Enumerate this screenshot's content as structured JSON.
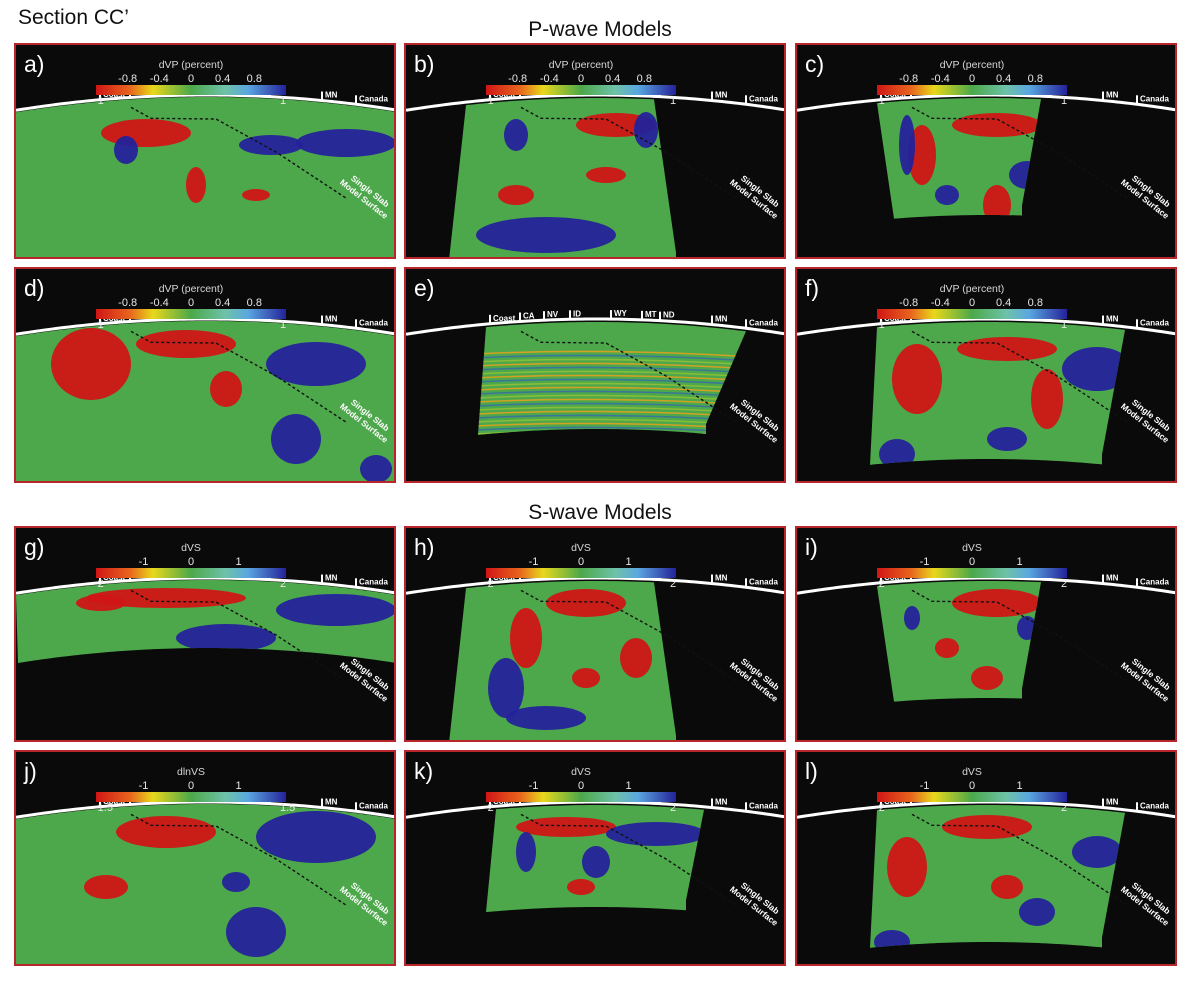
{
  "figure_title": "Section CC’",
  "groups": {
    "p": "P-wave Models",
    "s": "S-wave Models"
  },
  "state_labels": [
    "Coast",
    "CA",
    "NV",
    "ID",
    "WY",
    "MT",
    "ND",
    "MN",
    "Canada"
  ],
  "slab_label": [
    "Single Slab",
    "Model Surface"
  ],
  "colors": {
    "red": "#d01515",
    "green": "#4ca84a",
    "blue": "#24229a",
    "frame": "#b8262b",
    "bg": "#0a0a0a"
  },
  "panels": [
    {
      "id": "a",
      "label": "a)",
      "cbar_title": "dVP (percent)",
      "ticks": [
        "-0.8",
        "-0.4",
        "0",
        "0.4",
        "0.8"
      ],
      "min": "-1",
      "max": "1"
    },
    {
      "id": "b",
      "label": "b)",
      "cbar_title": "dVP (percent)",
      "ticks": [
        "-0.8",
        "-0.4",
        "0",
        "0.4",
        "0.8"
      ],
      "min": "-1",
      "max": "1"
    },
    {
      "id": "c",
      "label": "c)",
      "cbar_title": "dVP (percent)",
      "ticks": [
        "-0.8",
        "-0.4",
        "0",
        "0.4",
        "0.8"
      ],
      "min": "-1",
      "max": "1"
    },
    {
      "id": "d",
      "label": "d)",
      "cbar_title": "dVP (percent)",
      "ticks": [
        "-0.8",
        "-0.4",
        "0",
        "0.4",
        "0.8"
      ],
      "min": "-1",
      "max": "1"
    },
    {
      "id": "e",
      "label": "e)",
      "cbar_title": "",
      "ticks": [],
      "min": "",
      "max": ""
    },
    {
      "id": "f",
      "label": "f)",
      "cbar_title": "dVP (percent)",
      "ticks": [
        "-0.8",
        "-0.4",
        "0",
        "0.4",
        "0.8"
      ],
      "min": "-1",
      "max": "1"
    },
    {
      "id": "g",
      "label": "g)",
      "cbar_title": "dVS",
      "ticks": [
        "-1",
        "0",
        "1"
      ],
      "min": "-2",
      "max": "2"
    },
    {
      "id": "h",
      "label": "h)",
      "cbar_title": "dVS",
      "ticks": [
        "-1",
        "0",
        "1"
      ],
      "min": "-2",
      "max": "2"
    },
    {
      "id": "i",
      "label": "i)",
      "cbar_title": "dVS",
      "ticks": [
        "-1",
        "0",
        "1"
      ],
      "min": "-2",
      "max": "2"
    },
    {
      "id": "j",
      "label": "j)",
      "cbar_title": "dlnVS",
      "ticks": [
        "-1",
        "0",
        "1"
      ],
      "min": "-1.5",
      "max": "1.5"
    },
    {
      "id": "k",
      "label": "k)",
      "cbar_title": "dVS",
      "ticks": [
        "-1",
        "0",
        "1"
      ],
      "min": "-2",
      "max": "2"
    },
    {
      "id": "l",
      "label": "l)",
      "cbar_title": "dVS",
      "ticks": [
        "-1",
        "0",
        "1"
      ],
      "min": "-2",
      "max": "2"
    }
  ]
}
